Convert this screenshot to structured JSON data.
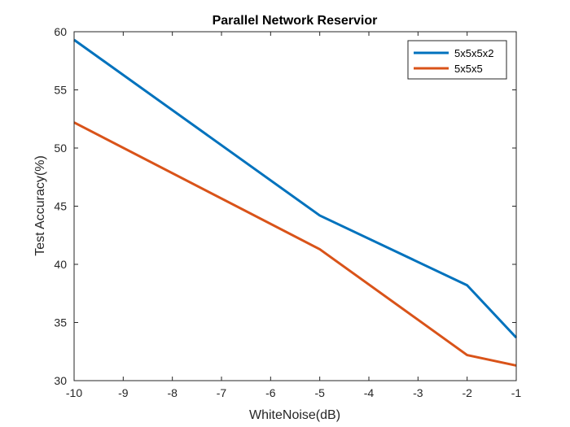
{
  "chart_data": {
    "type": "line",
    "title": "Parallel Network Reservior",
    "xlabel": "WhiteNoise(dB)",
    "ylabel": "Test Accuracy(%)",
    "xlim": [
      -10,
      -1
    ],
    "ylim": [
      30,
      60
    ],
    "xticks": [
      -10,
      -9,
      -8,
      -7,
      -6,
      -5,
      -4,
      -3,
      -2,
      -1
    ],
    "yticks": [
      30,
      35,
      40,
      45,
      50,
      55,
      60
    ],
    "x": [
      -10,
      -5,
      -2,
      -1
    ],
    "series": [
      {
        "name": "5x5x5x2",
        "color": "#0072BD",
        "values": [
          59.3,
          44.2,
          38.2,
          33.7
        ]
      },
      {
        "name": "5x5x5",
        "color": "#D95319",
        "values": [
          52.2,
          41.3,
          32.2,
          31.3
        ]
      }
    ],
    "grid": false,
    "legend_position": "top-right"
  }
}
